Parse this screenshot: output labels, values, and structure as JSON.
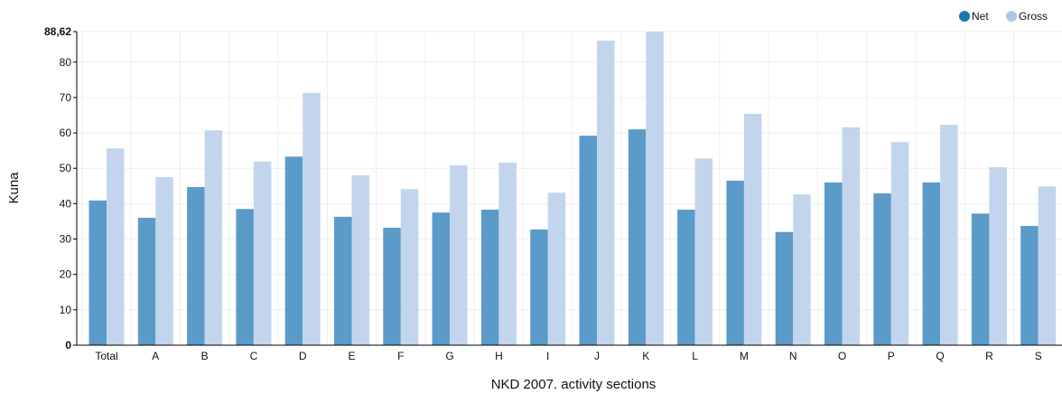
{
  "chart_data": {
    "type": "bar",
    "xlabel": "NKD 2007. activity sections",
    "ylabel": "Kuna",
    "ylim": [
      0,
      88.62
    ],
    "yticks": [
      "0",
      "10",
      "20",
      "30",
      "40",
      "50",
      "60",
      "70",
      "80",
      "88,62"
    ],
    "grid": true,
    "legend_position": "top-right",
    "categories": [
      "Total",
      "A",
      "B",
      "C",
      "D",
      "E",
      "F",
      "G",
      "H",
      "I",
      "J",
      "K",
      "L",
      "M",
      "N",
      "O",
      "P",
      "Q",
      "R",
      "S"
    ],
    "series": [
      {
        "name": "Net",
        "color": "#5b9bc9",
        "legend_color": "#1f77b4",
        "values": [
          40.9,
          36.0,
          44.7,
          38.5,
          53.3,
          36.3,
          33.2,
          37.5,
          38.3,
          32.7,
          59.2,
          61.0,
          38.3,
          46.5,
          32.0,
          46.0,
          42.9,
          46.0,
          37.2,
          33.7
        ]
      },
      {
        "name": "Gross",
        "color": "#c3d5ed",
        "legend_color": "#aec7e8",
        "values": [
          55.6,
          47.5,
          60.7,
          51.9,
          71.3,
          48.0,
          44.1,
          50.8,
          51.6,
          43.1,
          86.1,
          88.62,
          52.8,
          65.4,
          42.6,
          61.6,
          57.4,
          62.3,
          50.3,
          44.9
        ]
      }
    ]
  }
}
